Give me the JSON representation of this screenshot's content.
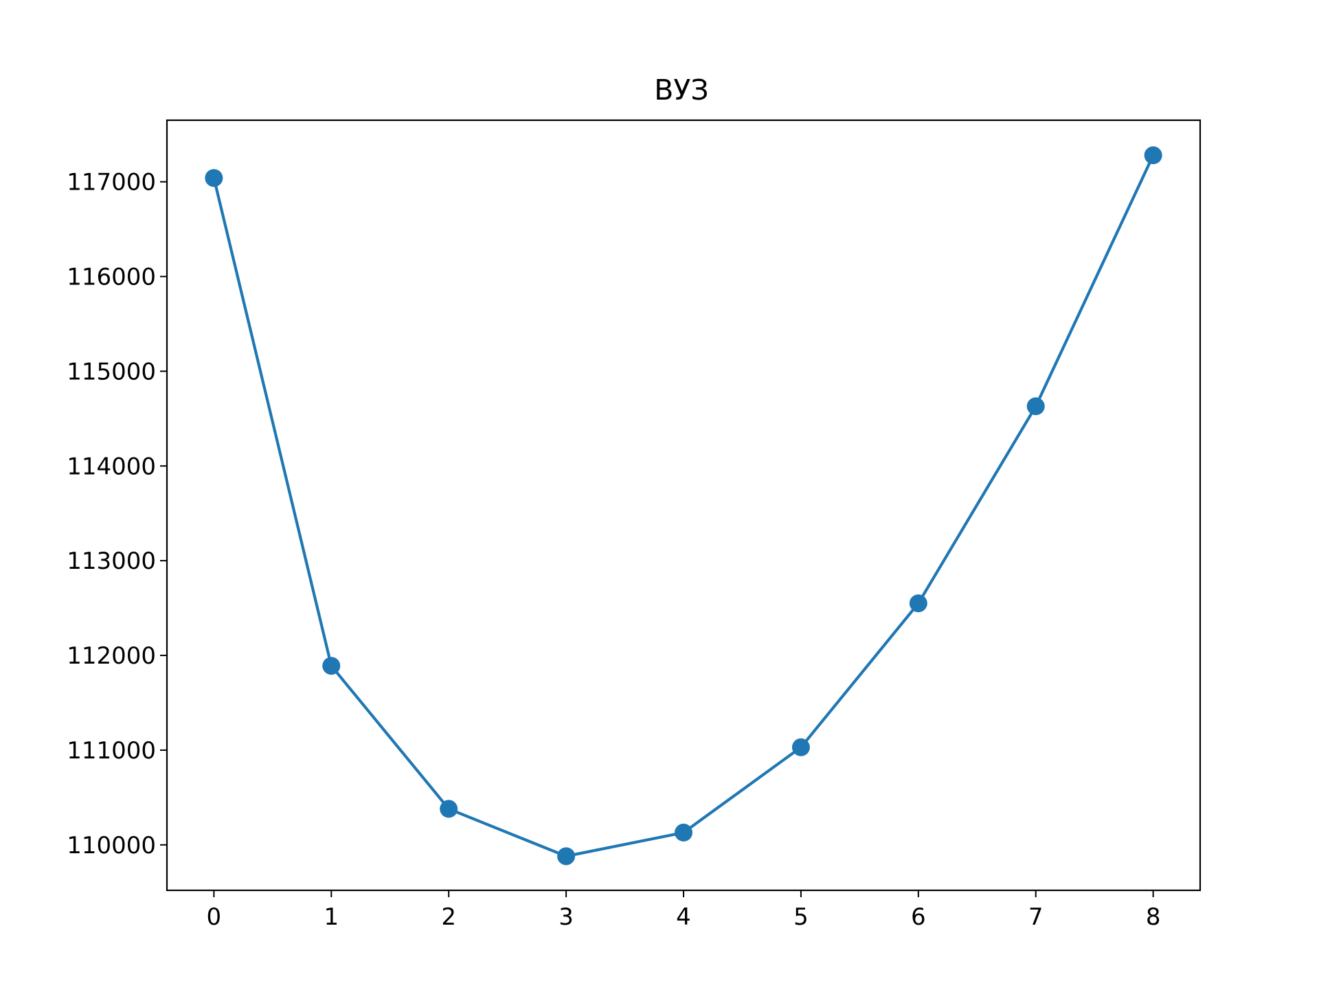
{
  "chart_data": {
    "type": "line",
    "title": "ВУЗ",
    "xlabel": "",
    "ylabel": "",
    "x": [
      0,
      1,
      2,
      3,
      4,
      5,
      6,
      7,
      8
    ],
    "series": [
      {
        "values": [
          117040,
          111890,
          110380,
          109880,
          110130,
          111030,
          112550,
          114630,
          117280
        ],
        "color": "#1f77b4",
        "marker": "circle"
      }
    ],
    "x_ticks": [
      "0",
      "1",
      "2",
      "3",
      "4",
      "5",
      "6",
      "7",
      "8"
    ],
    "y_ticks": [
      "110000",
      "111000",
      "112000",
      "113000",
      "114000",
      "115000",
      "116000",
      "117000"
    ],
    "xlim": [
      -0.4,
      8.4
    ],
    "ylim": [
      109520,
      117650
    ],
    "grid": false,
    "legend": "none"
  }
}
